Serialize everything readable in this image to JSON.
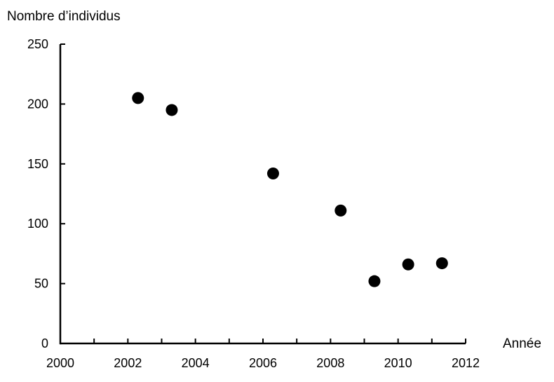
{
  "chart_data": {
    "type": "scatter",
    "title": "",
    "ylabel": "Nombre d’individus",
    "xlabel": "Année",
    "x": [
      2002.3,
      2003.3,
      2006.3,
      2008.3,
      2009.3,
      2010.3,
      2011.3
    ],
    "y": [
      205,
      195,
      142,
      111,
      52,
      66,
      67
    ],
    "xlim": [
      2000,
      2012
    ],
    "ylim": [
      0,
      250
    ],
    "xticks_labeled": [
      2000,
      2002,
      2004,
      2006,
      2008,
      2010,
      2012
    ],
    "xtick_minor_step": 1,
    "yticks": [
      0,
      50,
      100,
      150,
      200,
      250
    ],
    "grid": false,
    "legend_position": "none",
    "marker": "circle",
    "marker_color": "#000000",
    "axis_color": "#000000",
    "background_color": "#ffffff"
  }
}
